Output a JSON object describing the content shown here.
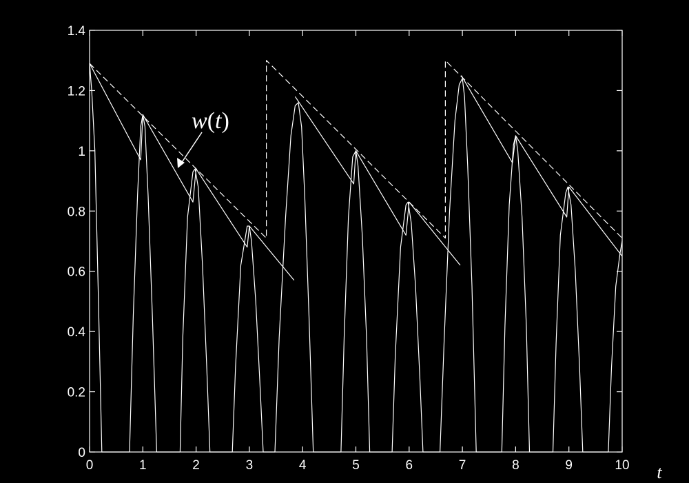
{
  "chart_data": {
    "type": "line",
    "title": "",
    "xlabel": "t",
    "ylabel": "",
    "xlim": [
      0,
      10
    ],
    "ylim": [
      0,
      1.4
    ],
    "xticks": [
      0,
      1,
      2,
      3,
      4,
      5,
      6,
      7,
      8,
      9,
      10
    ],
    "yticks": [
      0,
      0.2,
      0.4,
      0.6,
      0.8,
      1,
      1.2,
      1.4
    ],
    "ytick_labels": [
      "0",
      "0.2",
      "0.4",
      "0.6",
      "0.8",
      "1",
      "1.2",
      "1.4"
    ],
    "grid": false,
    "legend": "none",
    "colors": {
      "background": "#000000",
      "foreground": "#ffffff"
    },
    "annotation": {
      "text": "w(t)",
      "arrow_to": [
        1.65,
        0.93
      ]
    },
    "series": [
      {
        "style": "solid",
        "points": [
          [
            0.0,
            1.29
          ],
          [
            0.04,
            1.2
          ],
          [
            0.1,
            1.0
          ],
          [
            0.16,
            0.55
          ],
          [
            0.23,
            0.0
          ],
          [
            0.75,
            0.0
          ],
          [
            0.82,
            0.45
          ],
          [
            0.9,
            0.85
          ],
          [
            0.96,
            1.08
          ],
          [
            1.0,
            1.12
          ],
          [
            1.04,
            1.08
          ],
          [
            1.1,
            0.85
          ],
          [
            1.18,
            0.45
          ],
          [
            1.26,
            0.0
          ],
          [
            1.7,
            0.0
          ],
          [
            1.75,
            0.38
          ],
          [
            1.84,
            0.78
          ],
          [
            1.94,
            0.93
          ],
          [
            1.98,
            0.94
          ],
          [
            2.04,
            0.88
          ],
          [
            2.12,
            0.62
          ],
          [
            2.2,
            0.28
          ],
          [
            2.26,
            0.0
          ],
          [
            2.68,
            0.0
          ],
          [
            2.74,
            0.28
          ],
          [
            2.84,
            0.62
          ],
          [
            2.96,
            0.75
          ],
          [
            3.0,
            0.75
          ],
          [
            3.04,
            0.7
          ],
          [
            3.12,
            0.5
          ],
          [
            3.2,
            0.22
          ],
          [
            3.26,
            0.0
          ],
          [
            3.48,
            0.0
          ],
          [
            3.56,
            0.38
          ],
          [
            3.68,
            0.78
          ],
          [
            3.78,
            1.05
          ],
          [
            3.86,
            1.15
          ],
          [
            3.92,
            1.16
          ],
          [
            3.98,
            1.08
          ],
          [
            4.04,
            0.85
          ],
          [
            4.12,
            0.45
          ],
          [
            4.2,
            0.0
          ],
          [
            4.72,
            0.0
          ],
          [
            4.78,
            0.38
          ],
          [
            4.86,
            0.78
          ],
          [
            4.94,
            0.98
          ],
          [
            5.0,
            1.0
          ],
          [
            5.04,
            0.95
          ],
          [
            5.12,
            0.72
          ],
          [
            5.2,
            0.38
          ],
          [
            5.26,
            0.0
          ],
          [
            5.68,
            0.0
          ],
          [
            5.74,
            0.32
          ],
          [
            5.84,
            0.68
          ],
          [
            5.94,
            0.82
          ],
          [
            5.98,
            0.83
          ],
          [
            6.04,
            0.76
          ],
          [
            6.12,
            0.55
          ],
          [
            6.2,
            0.25
          ],
          [
            6.26,
            0.0
          ],
          [
            6.58,
            0.0
          ],
          [
            6.66,
            0.38
          ],
          [
            6.76,
            0.8
          ],
          [
            6.86,
            1.1
          ],
          [
            6.94,
            1.22
          ],
          [
            7.0,
            1.24
          ],
          [
            7.04,
            1.18
          ],
          [
            7.1,
            0.95
          ],
          [
            7.18,
            0.55
          ],
          [
            7.26,
            0.0
          ],
          [
            7.74,
            0.0
          ],
          [
            7.8,
            0.42
          ],
          [
            7.88,
            0.82
          ],
          [
            7.96,
            1.02
          ],
          [
            8.0,
            1.05
          ],
          [
            8.04,
            1.0
          ],
          [
            8.12,
            0.78
          ],
          [
            8.2,
            0.42
          ],
          [
            8.26,
            0.0
          ],
          [
            8.7,
            0.0
          ],
          [
            8.76,
            0.36
          ],
          [
            8.84,
            0.72
          ],
          [
            8.94,
            0.86
          ],
          [
            8.98,
            0.88
          ],
          [
            9.04,
            0.82
          ],
          [
            9.12,
            0.6
          ],
          [
            9.2,
            0.28
          ],
          [
            9.26,
            0.0
          ],
          [
            9.74,
            0.0
          ],
          [
            9.8,
            0.28
          ],
          [
            9.88,
            0.55
          ],
          [
            9.96,
            0.66
          ],
          [
            10.0,
            0.7
          ]
        ]
      },
      {
        "style": "solid",
        "points": [
          [
            0.0,
            1.29
          ],
          [
            0.96,
            0.97
          ],
          [
            1.0,
            1.12
          ],
          [
            1.94,
            0.83
          ],
          [
            2.0,
            0.94
          ],
          [
            2.96,
            0.68
          ],
          [
            3.0,
            0.75
          ],
          [
            3.84,
            0.57
          ]
        ]
      },
      {
        "style": "solid",
        "points": [
          [
            3.86,
            1.18
          ],
          [
            4.96,
            0.89
          ],
          [
            5.0,
            1.0
          ],
          [
            5.94,
            0.72
          ],
          [
            6.0,
            0.83
          ],
          [
            6.96,
            0.62
          ]
        ]
      },
      {
        "style": "solid",
        "points": [
          [
            6.98,
            1.25
          ],
          [
            7.94,
            0.96
          ],
          [
            8.0,
            1.05
          ],
          [
            8.96,
            0.78
          ],
          [
            9.0,
            0.88
          ],
          [
            10.0,
            0.65
          ]
        ]
      },
      {
        "style": "dashed",
        "points": [
          [
            0.0,
            1.29
          ],
          [
            3.32,
            0.71
          ],
          [
            3.32,
            1.3
          ],
          [
            6.68,
            0.71
          ],
          [
            6.68,
            1.3
          ],
          [
            10.0,
            0.71
          ]
        ]
      }
    ]
  }
}
